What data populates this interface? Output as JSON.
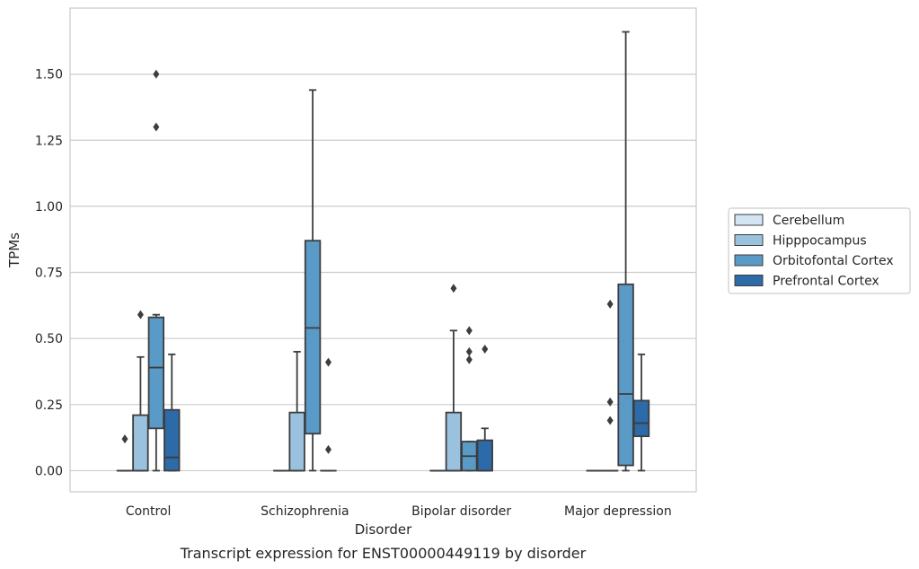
{
  "chart_data": {
    "type": "box",
    "caption": "Transcript expression for ENST00000449119 by disorder",
    "xlabel": "Disorder",
    "ylabel": "TPMs",
    "ylim": [
      -0.08,
      1.75
    ],
    "yticks": [
      0.0,
      0.25,
      0.5,
      0.75,
      1.0,
      1.25,
      1.5
    ],
    "ytick_labels": [
      "0.00",
      "0.25",
      "0.50",
      "0.75",
      "1.00",
      "1.25",
      "1.50"
    ],
    "grid": "horizontal",
    "legend_position": "right",
    "categories": [
      "Control",
      "Schizophrenia",
      "Bipolar disorder",
      "Major depression"
    ],
    "series": [
      {
        "name": "Cerebellum",
        "color": "#d3e4f3",
        "boxes": [
          {
            "whislo": 0,
            "q1": 0,
            "med": 0,
            "q3": 0,
            "whishi": 0,
            "fliers": [
              0.12
            ]
          },
          {
            "whislo": 0,
            "q1": 0,
            "med": 0,
            "q3": 0,
            "whishi": 0,
            "fliers": []
          },
          {
            "whislo": 0,
            "q1": 0,
            "med": 0,
            "q3": 0,
            "whishi": 0,
            "fliers": []
          },
          {
            "whislo": 0,
            "q1": 0,
            "med": 0,
            "q3": 0,
            "whishi": 0,
            "fliers": []
          }
        ]
      },
      {
        "name": "Hipppocampus",
        "color": "#9ac2de",
        "boxes": [
          {
            "whislo": 0,
            "q1": 0,
            "med": 0,
            "q3": 0.21,
            "whishi": 0.43,
            "fliers": [
              0.59
            ]
          },
          {
            "whislo": 0,
            "q1": 0,
            "med": 0,
            "q3": 0.22,
            "whishi": 0.45,
            "fliers": []
          },
          {
            "whislo": 0,
            "q1": 0,
            "med": 0,
            "q3": 0.22,
            "whishi": 0.53,
            "fliers": [
              0.69
            ]
          },
          {
            "whislo": 0,
            "q1": 0,
            "med": 0,
            "q3": 0,
            "whishi": 0,
            "fliers": [
              0.63,
              0.26,
              0.19
            ]
          }
        ]
      },
      {
        "name": "Orbitofontal Cortex",
        "color": "#5a9ac7",
        "boxes": [
          {
            "whislo": 0,
            "q1": 0.16,
            "med": 0.39,
            "q3": 0.58,
            "whishi": 0.59,
            "fliers": [
              1.5,
              1.3
            ]
          },
          {
            "whislo": 0,
            "q1": 0.14,
            "med": 0.54,
            "q3": 0.87,
            "whishi": 1.44,
            "fliers": []
          },
          {
            "whislo": 0,
            "q1": 0,
            "med": 0.055,
            "q3": 0.11,
            "whishi": 0.11,
            "fliers": [
              0.53,
              0.45,
              0.42
            ]
          },
          {
            "whislo": 0,
            "q1": 0.02,
            "med": 0.29,
            "q3": 0.705,
            "whishi": 1.66,
            "fliers": []
          }
        ]
      },
      {
        "name": "Prefrontal Cortex",
        "color": "#2d6aa8",
        "boxes": [
          {
            "whislo": 0,
            "q1": 0,
            "med": 0.05,
            "q3": 0.23,
            "whishi": 0.44,
            "fliers": []
          },
          {
            "whislo": 0,
            "q1": 0,
            "med": 0,
            "q3": 0,
            "whishi": 0,
            "fliers": [
              0.41,
              0.08
            ]
          },
          {
            "whislo": 0,
            "q1": 0,
            "med": 0,
            "q3": 0.115,
            "whishi": 0.16,
            "fliers": [
              0.46
            ]
          },
          {
            "whislo": 0,
            "q1": 0.13,
            "med": 0.18,
            "q3": 0.265,
            "whishi": 0.44,
            "fliers": []
          }
        ]
      }
    ]
  }
}
